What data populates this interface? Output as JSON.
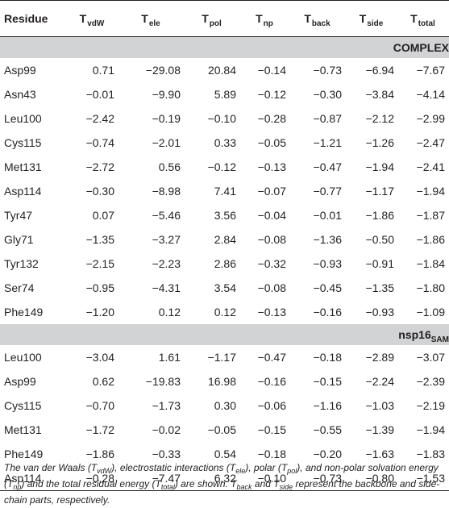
{
  "table": {
    "columns": [
      {
        "base": "Residue",
        "sub": ""
      },
      {
        "base": "T",
        "sub": "vdW"
      },
      {
        "base": "T",
        "sub": "ele"
      },
      {
        "base": "T",
        "sub": "pol"
      },
      {
        "base": "T",
        "sub": "np"
      },
      {
        "base": "T",
        "sub": "back"
      },
      {
        "base": "T",
        "sub": "side"
      },
      {
        "base": "T",
        "sub": "total"
      }
    ],
    "groups": [
      {
        "label": "COMPLEX",
        "label_sub": "",
        "rows": [
          [
            "Asp99",
            "0.71",
            "−29.08",
            "20.84",
            "−0.14",
            "−0.73",
            "−6.94",
            "−7.67"
          ],
          [
            "Asn43",
            "−0.01",
            "−9.90",
            "5.89",
            "−0.12",
            "−0.30",
            "−3.84",
            "−4.14"
          ],
          [
            "Leu100",
            "−2.42",
            "−0.19",
            "−0.10",
            "−0.28",
            "−0.87",
            "−2.12",
            "−2.99"
          ],
          [
            "Cys115",
            "−0.74",
            "−2.01",
            "0.33",
            "−0.05",
            "−1.21",
            "−1.26",
            "−2.47"
          ],
          [
            "Met131",
            "−2.72",
            "0.56",
            "−0.12",
            "−0.13",
            "−0.47",
            "−1.94",
            "−2.41"
          ],
          [
            "Asp114",
            "−0.30",
            "−8.98",
            "7.41",
            "−0.07",
            "−0.77",
            "−1.17",
            "−1.94"
          ],
          [
            "Tyr47",
            "0.07",
            "−5.46",
            "3.56",
            "−0.04",
            "−0.01",
            "−1.86",
            "−1.87"
          ],
          [
            "Gly71",
            "−1.35",
            "−3.27",
            "2.84",
            "−0.08",
            "−1.36",
            "−0.50",
            "−1.86"
          ],
          [
            "Tyr132",
            "−2.15",
            "−2.23",
            "2.86",
            "−0.32",
            "−0.93",
            "−0.91",
            "−1.84"
          ],
          [
            "Ser74",
            "−0.95",
            "−4.31",
            "3.54",
            "−0.08",
            "−0.45",
            "−1.35",
            "−1.80"
          ],
          [
            "Phe149",
            "−1.20",
            "0.12",
            "0.12",
            "−0.13",
            "−0.16",
            "−0.93",
            "−1.09"
          ]
        ]
      },
      {
        "label": "nsp16",
        "label_sub": "SAM",
        "rows": [
          [
            "Leu100",
            "−3.04",
            "1.61",
            "−1.17",
            "−0.47",
            "−0.18",
            "−2.89",
            "−3.07"
          ],
          [
            "Asp99",
            "0.62",
            "−19.83",
            "16.98",
            "−0.16",
            "−0.15",
            "−2.24",
            "−2.39"
          ],
          [
            "Cys115",
            "−0.70",
            "−1.73",
            "0.30",
            "−0.06",
            "−1.16",
            "−1.03",
            "−2.19"
          ],
          [
            "Met131",
            "−1.72",
            "−0.02",
            "−0.05",
            "−0.15",
            "−0.55",
            "−1.39",
            "−1.94"
          ],
          [
            "Phe149",
            "−1.86",
            "−0.33",
            "0.54",
            "−0.18",
            "−0.20",
            "−1.63",
            "−1.83"
          ],
          [
            "Asp114",
            "−0.28",
            "−7.47",
            "6.32",
            "−0.10",
            "−0.73",
            "−0.80",
            "−1.53"
          ]
        ]
      }
    ]
  },
  "footnote": {
    "t1": "The van der Waals (",
    "t2": "T",
    "t3": "vdW",
    "t4": "), electrostatic interactions (",
    "t5": "T",
    "t6": "ele",
    "t7": "), polar (",
    "t8": "T",
    "t9": "pol",
    "t10": "), and non-polar solvation energy (",
    "t11": "T",
    "t12": "np",
    "t13": ") and the total residual energy (",
    "t14": "T",
    "t15": "total",
    "t16": ") are shown. ",
    "t17": "T",
    "t18": "back",
    "t19": " and ",
    "t20": "T",
    "t21": "side",
    "t22": " represent the backbone and side-chain parts, respectively."
  }
}
